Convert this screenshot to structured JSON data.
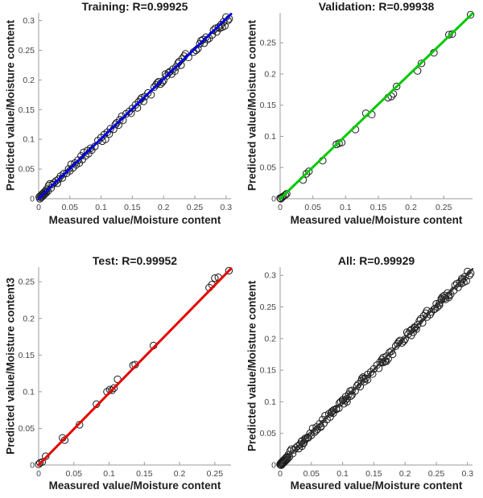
{
  "style": {
    "background": "#ffffff",
    "marker_color": "#1a1a1a",
    "axis_color": "#9b9b9b",
    "tick_text_color": "#464646",
    "label_text_color": "#1f1f1f"
  },
  "chart_data": [
    {
      "type": "scatter",
      "id": "training",
      "title": "Training: R=0.99925",
      "xlabel": "Measured value/Moisture content",
      "ylabel": "Predicted value/Moisture content",
      "line_color": "#0000e0",
      "line_width": 3,
      "xlim": [
        0,
        0.308
      ],
      "ylim": [
        0,
        0.313
      ],
      "xticks": [
        0,
        0.05,
        0.1,
        0.15,
        0.2,
        0.25,
        0.3
      ],
      "yticks": [
        0,
        0.05,
        0.1,
        0.15,
        0.2,
        0.25,
        0.3
      ],
      "fit": [
        [
          0,
          0
        ],
        [
          0.308,
          0.311
        ]
      ],
      "points": [
        [
          0.001,
          0.003
        ],
        [
          0.002,
          0.0
        ],
        [
          0.003,
          0.005
        ],
        [
          0.004,
          0.002
        ],
        [
          0.005,
          0.007
        ],
        [
          0.006,
          0.004
        ],
        [
          0.007,
          0.009
        ],
        [
          0.008,
          0.006
        ],
        [
          0.009,
          0.011
        ],
        [
          0.01,
          0.008
        ],
        [
          0.011,
          0.013
        ],
        [
          0.012,
          0.01
        ],
        [
          0.013,
          0.016
        ],
        [
          0.015,
          0.013
        ],
        [
          0.016,
          0.022
        ],
        [
          0.018,
          0.025
        ],
        [
          0.02,
          0.018
        ],
        [
          0.022,
          0.024
        ],
        [
          0.025,
          0.027
        ],
        [
          0.028,
          0.03
        ],
        [
          0.03,
          0.026
        ],
        [
          0.032,
          0.033
        ],
        [
          0.035,
          0.038
        ],
        [
          0.038,
          0.035
        ],
        [
          0.04,
          0.042
        ],
        [
          0.045,
          0.043
        ],
        [
          0.048,
          0.05
        ],
        [
          0.05,
          0.047
        ],
        [
          0.052,
          0.058
        ],
        [
          0.055,
          0.052
        ],
        [
          0.058,
          0.06
        ],
        [
          0.06,
          0.057
        ],
        [
          0.063,
          0.065
        ],
        [
          0.065,
          0.06
        ],
        [
          0.068,
          0.072
        ],
        [
          0.07,
          0.066
        ],
        [
          0.072,
          0.078
        ],
        [
          0.075,
          0.072
        ],
        [
          0.078,
          0.081
        ],
        [
          0.08,
          0.076
        ],
        [
          0.083,
          0.085
        ],
        [
          0.085,
          0.082
        ],
        [
          0.09,
          0.088
        ],
        [
          0.095,
          0.098
        ],
        [
          0.1,
          0.103
        ],
        [
          0.102,
          0.097
        ],
        [
          0.105,
          0.108
        ],
        [
          0.107,
          0.1
        ],
        [
          0.11,
          0.112
        ],
        [
          0.113,
          0.109
        ],
        [
          0.115,
          0.118
        ],
        [
          0.12,
          0.117
        ],
        [
          0.123,
          0.125
        ],
        [
          0.125,
          0.128
        ],
        [
          0.128,
          0.124
        ],
        [
          0.13,
          0.133
        ],
        [
          0.133,
          0.139
        ],
        [
          0.135,
          0.132
        ],
        [
          0.14,
          0.143
        ],
        [
          0.145,
          0.147
        ],
        [
          0.148,
          0.144
        ],
        [
          0.15,
          0.152
        ],
        [
          0.155,
          0.158
        ],
        [
          0.158,
          0.153
        ],
        [
          0.16,
          0.163
        ],
        [
          0.163,
          0.167
        ],
        [
          0.165,
          0.17
        ],
        [
          0.168,
          0.164
        ],
        [
          0.17,
          0.172
        ],
        [
          0.175,
          0.178
        ],
        [
          0.18,
          0.175
        ],
        [
          0.185,
          0.188
        ],
        [
          0.188,
          0.192
        ],
        [
          0.19,
          0.195
        ],
        [
          0.192,
          0.197
        ],
        [
          0.195,
          0.193
        ],
        [
          0.198,
          0.196
        ],
        [
          0.2,
          0.199
        ],
        [
          0.203,
          0.21
        ],
        [
          0.205,
          0.207
        ],
        [
          0.208,
          0.212
        ],
        [
          0.21,
          0.214
        ],
        [
          0.213,
          0.21
        ],
        [
          0.215,
          0.218
        ],
        [
          0.218,
          0.215
        ],
        [
          0.22,
          0.222
        ],
        [
          0.223,
          0.228
        ],
        [
          0.225,
          0.231
        ],
        [
          0.228,
          0.225
        ],
        [
          0.23,
          0.236
        ],
        [
          0.233,
          0.24
        ],
        [
          0.235,
          0.244
        ],
        [
          0.24,
          0.238
        ],
        [
          0.248,
          0.247
        ],
        [
          0.252,
          0.25
        ],
        [
          0.255,
          0.253
        ],
        [
          0.258,
          0.261
        ],
        [
          0.26,
          0.266
        ],
        [
          0.263,
          0.268
        ],
        [
          0.265,
          0.262
        ],
        [
          0.268,
          0.272
        ],
        [
          0.27,
          0.268
        ],
        [
          0.273,
          0.27
        ],
        [
          0.278,
          0.276
        ],
        [
          0.28,
          0.284
        ],
        [
          0.283,
          0.287
        ],
        [
          0.285,
          0.281
        ],
        [
          0.288,
          0.289
        ],
        [
          0.29,
          0.287
        ],
        [
          0.292,
          0.293
        ],
        [
          0.294,
          0.289
        ],
        [
          0.296,
          0.298
        ],
        [
          0.298,
          0.291
        ],
        [
          0.3,
          0.306
        ],
        [
          0.303,
          0.3
        ],
        [
          0.305,
          0.303
        ]
      ]
    },
    {
      "type": "scatter",
      "id": "validation",
      "title": "Validation: R=0.99938",
      "xlabel": "Measured value/Moisture content",
      "ylabel": "Predicted value/Moisture content",
      "line_color": "#00c800",
      "line_width": 3,
      "xlim": [
        0,
        0.294
      ],
      "ylim": [
        0,
        0.298
      ],
      "xticks": [
        0,
        0.05,
        0.1,
        0.15,
        0.2,
        0.25
      ],
      "yticks": [
        0,
        0.05,
        0.1,
        0.15,
        0.2,
        0.25
      ],
      "fit": [
        [
          0,
          0
        ],
        [
          0.294,
          0.297
        ]
      ],
      "points": [
        [
          0.0,
          0.001
        ],
        [
          0.001,
          0.0
        ],
        [
          0.003,
          0.002
        ],
        [
          0.005,
          0.004
        ],
        [
          0.008,
          0.006
        ],
        [
          0.01,
          0.008
        ],
        [
          0.035,
          0.03
        ],
        [
          0.04,
          0.04
        ],
        [
          0.044,
          0.044
        ],
        [
          0.065,
          0.061
        ],
        [
          0.086,
          0.087
        ],
        [
          0.09,
          0.089
        ],
        [
          0.094,
          0.09
        ],
        [
          0.115,
          0.111
        ],
        [
          0.131,
          0.137
        ],
        [
          0.14,
          0.135
        ],
        [
          0.165,
          0.162
        ],
        [
          0.17,
          0.164
        ],
        [
          0.173,
          0.168
        ],
        [
          0.178,
          0.18
        ],
        [
          0.21,
          0.205
        ],
        [
          0.216,
          0.217
        ],
        [
          0.235,
          0.234
        ],
        [
          0.258,
          0.263
        ],
        [
          0.263,
          0.264
        ],
        [
          0.291,
          0.295
        ]
      ]
    },
    {
      "type": "scatter",
      "id": "test",
      "title": "Test: R=0.99952",
      "xlabel": "Measured value/Moisture content",
      "ylabel": "Predicted value/Moisture content3",
      "line_color": "#e60000",
      "line_width": 3,
      "xlim": [
        0,
        0.273
      ],
      "ylim": [
        0,
        0.27
      ],
      "xticks": [
        0,
        0.05,
        0.1,
        0.15,
        0.2,
        0.25
      ],
      "yticks": [
        0,
        0.05,
        0.1,
        0.15,
        0.2,
        0.25
      ],
      "fit": [
        [
          0,
          0
        ],
        [
          0.273,
          0.268
        ]
      ],
      "points": [
        [
          0.0,
          0.001
        ],
        [
          0.002,
          0.003
        ],
        [
          0.005,
          0.004
        ],
        [
          0.01,
          0.012
        ],
        [
          0.034,
          0.037
        ],
        [
          0.037,
          0.034
        ],
        [
          0.058,
          0.055
        ],
        [
          0.082,
          0.083
        ],
        [
          0.097,
          0.1
        ],
        [
          0.101,
          0.103
        ],
        [
          0.104,
          0.102
        ],
        [
          0.107,
          0.105
        ],
        [
          0.112,
          0.117
        ],
        [
          0.134,
          0.136
        ],
        [
          0.137,
          0.137
        ],
        [
          0.163,
          0.163
        ],
        [
          0.242,
          0.242
        ],
        [
          0.246,
          0.246
        ],
        [
          0.25,
          0.255
        ],
        [
          0.255,
          0.256
        ],
        [
          0.27,
          0.265
        ]
      ]
    },
    {
      "type": "scatter",
      "id": "all",
      "title": "All: R=0.99929",
      "xlabel": "Measured value/Moisture content",
      "ylabel": "Predicted value/Moisture content",
      "line_color": "#333333",
      "line_width": 2.5,
      "xlim": [
        0,
        0.308
      ],
      "ylim": [
        0,
        0.313
      ],
      "xticks": [
        0,
        0.05,
        0.1,
        0.15,
        0.2,
        0.25,
        0.3
      ],
      "yticks": [
        0,
        0.05,
        0.1,
        0.15,
        0.2,
        0.25,
        0.3
      ],
      "fit": [
        [
          0,
          0
        ],
        [
          0.308,
          0.31
        ]
      ],
      "points_from": [
        "training",
        "validation",
        "test"
      ],
      "points": []
    }
  ]
}
